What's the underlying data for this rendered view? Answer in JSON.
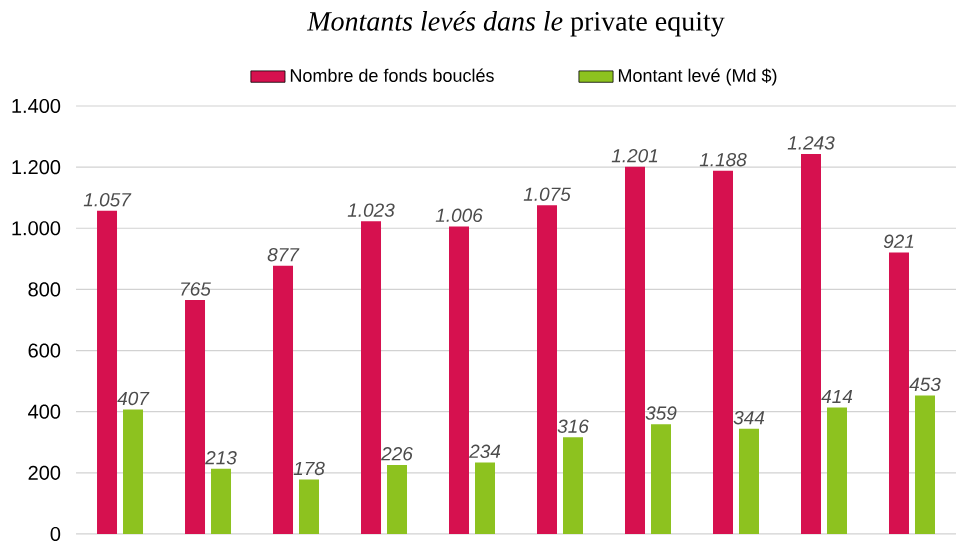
{
  "chart_data": {
    "type": "bar",
    "title": "*Montants levés dans le* private equity",
    "categories": [
      null,
      null,
      null,
      null,
      null,
      null,
      null,
      null,
      null,
      null
    ],
    "series": [
      {
        "name": "Nombre de fonds bouclés",
        "color": "#d6114f",
        "values": [
          1057,
          765,
          877,
          1023,
          1006,
          1075,
          1201,
          1188,
          1243,
          921
        ],
        "value_labels": [
          "1.057",
          "765",
          "877",
          "1.023",
          "1.006",
          "1.075",
          "1.201",
          "1.188",
          "1.243",
          "921"
        ]
      },
      {
        "name": "Montant levé (Md $)",
        "color": "#8dc21f",
        "values": [
          407,
          213,
          178,
          226,
          234,
          316,
          359,
          344,
          414,
          453
        ],
        "value_labels": [
          "407",
          "213",
          "178",
          "226",
          "234",
          "316",
          "359",
          "344",
          "414",
          "453"
        ]
      }
    ],
    "ylim": [
      0,
      1400
    ],
    "yticks": [
      {
        "value": 0,
        "label": "0"
      },
      {
        "value": 200,
        "label": "200"
      },
      {
        "value": 400,
        "label": "400"
      },
      {
        "value": 600,
        "label": "600"
      },
      {
        "value": 800,
        "label": "800"
      },
      {
        "value": 1000,
        "label": "1.000"
      },
      {
        "value": 1200,
        "label": "1.200"
      },
      {
        "value": 1400,
        "label": "1.400"
      }
    ],
    "grid": "y",
    "legend": "top"
  }
}
